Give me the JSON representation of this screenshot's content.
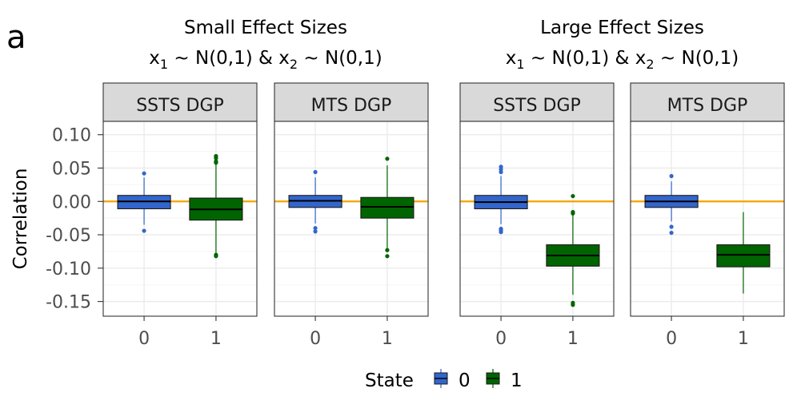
{
  "chart_data": {
    "type": "boxplot",
    "panel_tag": "a",
    "ylabel": "Correlation",
    "ylim": [
      -0.172,
      0.12
    ],
    "yticks": [
      0.1,
      0.05,
      0.0,
      -0.05,
      -0.1,
      -0.15
    ],
    "ytick_labels": [
      "0.10",
      "0.05",
      "0.00",
      "-0.05",
      "-0.10",
      "-0.15"
    ],
    "categories": [
      "0",
      "1"
    ],
    "reference_line": {
      "y": 0.0,
      "color": "#f5a300"
    },
    "legend": {
      "title": "State",
      "entries": [
        {
          "label": "0",
          "color": "#3366cc"
        },
        {
          "label": "1",
          "color": "#006400"
        }
      ]
    },
    "groups": [
      {
        "title_line1": "Small Effect Sizes",
        "x1_sym": "x",
        "x1_sub": "1",
        "x1_rest": " ~ N(0,1) & ",
        "x2_sym": "x",
        "x2_sub": "2",
        "x2_rest": " ~ N(0,1)",
        "panels": [
          {
            "label": "SSTS DGP",
            "boxes": [
              {
                "state": "0",
                "q1": -0.011,
                "median": 0.0,
                "q3": 0.009,
                "whisker_low": -0.035,
                "whisker_high": 0.036,
                "outliers": [
                  0.042,
                  -0.044
                ]
              },
              {
                "state": "1",
                "q1": -0.028,
                "median": -0.012,
                "q3": 0.005,
                "whisker_low": -0.077,
                "whisker_high": 0.055,
                "outliers": [
                  0.068,
                  0.065,
                  0.06,
                  0.058,
                  -0.08,
                  -0.082
                ]
              }
            ]
          },
          {
            "label": "MTS DGP",
            "boxes": [
              {
                "state": "0",
                "q1": -0.009,
                "median": 0.001,
                "q3": 0.009,
                "whisker_low": -0.033,
                "whisker_high": 0.036,
                "outliers": [
                  0.044,
                  -0.04,
                  -0.045
                ]
              },
              {
                "state": "1",
                "q1": -0.025,
                "median": -0.008,
                "q3": 0.006,
                "whisker_low": -0.07,
                "whisker_high": 0.054,
                "outliers": [
                  0.064,
                  -0.073,
                  -0.082
                ]
              }
            ]
          }
        ]
      },
      {
        "title_line1": "Large Effect Sizes",
        "x1_sym": "x",
        "x1_sub": "1",
        "x1_rest": " ~ N(0,1) & ",
        "x2_sym": "x",
        "x2_sub": "2",
        "x2_rest": " ~ N(0,1)",
        "panels": [
          {
            "label": "SSTS DGP",
            "boxes": [
              {
                "state": "0",
                "q1": -0.011,
                "median": -0.001,
                "q3": 0.009,
                "whisker_low": -0.034,
                "whisker_high": 0.038,
                "outliers": [
                  0.052,
                  0.048,
                  0.044,
                  -0.041,
                  -0.043,
                  -0.046
                ]
              },
              {
                "state": "1",
                "q1": -0.097,
                "median": -0.081,
                "q3": -0.065,
                "whisker_low": -0.14,
                "whisker_high": -0.02,
                "outliers": [
                  0.008,
                  -0.016,
                  -0.018,
                  -0.152,
                  -0.155
                ]
              }
            ]
          },
          {
            "label": "MTS DGP",
            "boxes": [
              {
                "state": "0",
                "q1": -0.009,
                "median": 0.0,
                "q3": 0.009,
                "whisker_low": -0.03,
                "whisker_high": 0.03,
                "outliers": [
                  0.038,
                  -0.038,
                  -0.047
                ]
              },
              {
                "state": "1",
                "q1": -0.098,
                "median": -0.08,
                "q3": -0.065,
                "whisker_low": -0.138,
                "whisker_high": -0.016,
                "outliers": []
              }
            ]
          }
        ]
      }
    ]
  },
  "colors": {
    "state0_fill": "#3366cc",
    "state1_fill": "#006400",
    "strip_bg": "#d9d9d9",
    "grid_major": "#ebebeb",
    "grid_minor": "#f5f5f5"
  }
}
